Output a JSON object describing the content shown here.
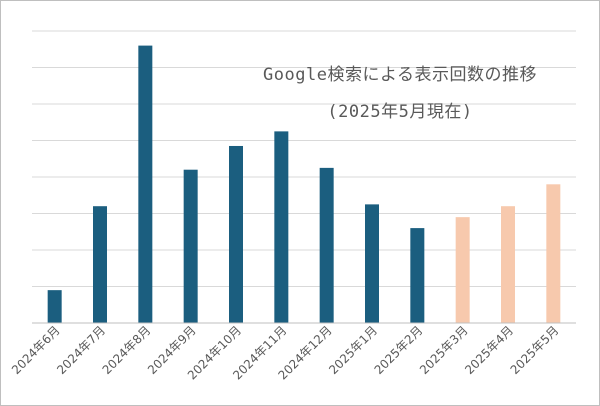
{
  "chart_data": {
    "type": "bar",
    "title": "Google検索による表示回数の推移",
    "subtitle": "(2025年5月現在)",
    "categories": [
      "2024年6月",
      "2024年7月",
      "2024年8月",
      "2024年9月",
      "2024年10月",
      "2024年11月",
      "2024年12月",
      "2025年1月",
      "2025年2月",
      "2025年3月",
      "2025年4月",
      "2025年5月"
    ],
    "values": [
      0.9,
      3.2,
      7.6,
      4.2,
      4.85,
      5.25,
      4.25,
      3.25,
      2.6,
      2.9,
      3.2,
      3.8
    ],
    "ylim": [
      0,
      8
    ],
    "grid": true,
    "colors": {
      "actual": "#1b5e7f",
      "recent": "#f7c9ad",
      "gridline": "#d9d9d9",
      "axis": "#bfbfbf"
    },
    "recent_from_index": 9
  }
}
